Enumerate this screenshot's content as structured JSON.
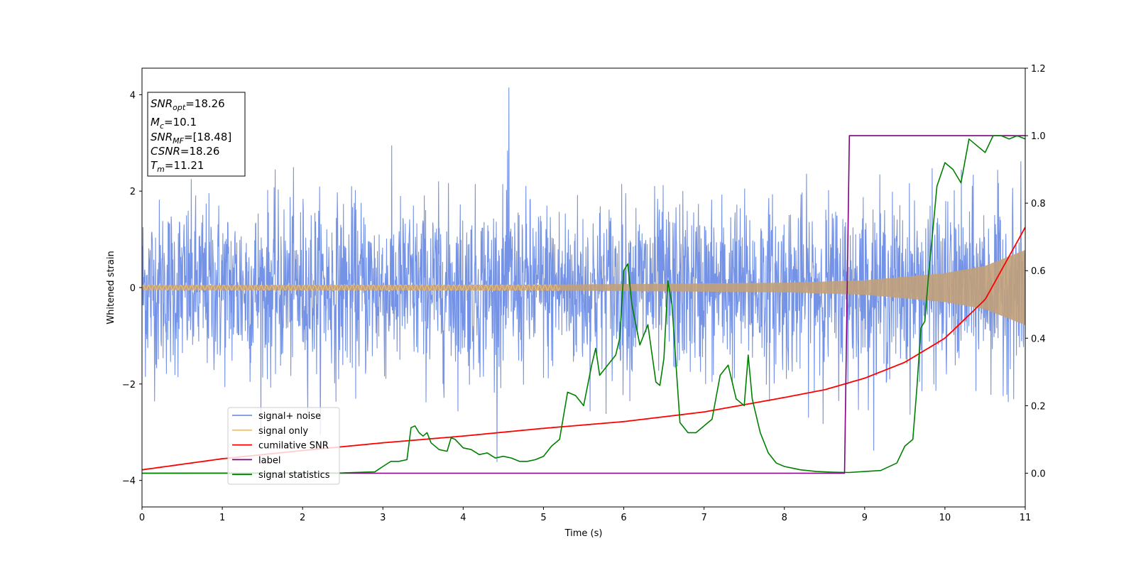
{
  "chart_data": {
    "type": "line",
    "xlabel": "Time (s)",
    "ylabel": "Whitened strain",
    "xlim": [
      0,
      11
    ],
    "ylim": [
      -4.55,
      4.55
    ],
    "y2lim": [
      -0.1,
      1.2
    ],
    "xticks": [
      0,
      1,
      2,
      3,
      4,
      5,
      6,
      7,
      8,
      9,
      10,
      11
    ],
    "yticks": [
      -4,
      -2,
      0,
      2,
      4
    ],
    "y2ticks": [
      "0.0",
      "0.2",
      "0.4",
      "0.6",
      "0.8",
      "1.0",
      "1.2"
    ],
    "grid": false,
    "legend_position": "lower-left",
    "annotation_box": {
      "snr_opt": {
        "label": "SNR",
        "sub": "opt",
        "value": "=18.26"
      },
      "mc": {
        "label": "M",
        "sub": "c",
        "value": "=10.1"
      },
      "snr_mf": {
        "label": "SNR",
        "sub": "MF",
        "value": "=[18.48]"
      },
      "csnr": {
        "label": "CSNR",
        "sub": "",
        "value": "=18.26"
      },
      "tm": {
        "label": "T",
        "sub": "m",
        "value": "=11.21"
      }
    },
    "series": [
      {
        "name": "signal+ noise",
        "color": "#7593e6",
        "axis": "left",
        "noise_sigma": 0.9,
        "peak": 4.15
      },
      {
        "name": "signal only",
        "color": "#f5c06a",
        "fill_color": "#c2a17a",
        "axis": "left",
        "envelope": [
          [
            0,
            0.05
          ],
          [
            5,
            0.06
          ],
          [
            8,
            0.1
          ],
          [
            9,
            0.15
          ],
          [
            10,
            0.3
          ],
          [
            10.5,
            0.45
          ],
          [
            11,
            0.78
          ]
        ]
      },
      {
        "name": "cumilative SNR",
        "color": "#ff0000",
        "axis": "left",
        "x": [
          0,
          1,
          2,
          3,
          4,
          5,
          6,
          7,
          8,
          8.5,
          9,
          9.5,
          10,
          10.5,
          11
        ],
        "y": [
          -3.78,
          -3.55,
          -3.38,
          -3.22,
          -3.08,
          -2.92,
          -2.78,
          -2.58,
          -2.28,
          -2.12,
          -1.88,
          -1.55,
          -1.05,
          -0.25,
          1.25
        ]
      },
      {
        "name": "label",
        "color": "#800080",
        "axis": "right",
        "x": [
          0,
          8.75,
          8.81,
          11
        ],
        "y": [
          0,
          0,
          1,
          1
        ]
      },
      {
        "name": "signal statistics",
        "color": "#008000",
        "axis": "right",
        "x": [
          0,
          2.5,
          2.9,
          3.0,
          3.1,
          3.2,
          3.3,
          3.35,
          3.4,
          3.45,
          3.5,
          3.55,
          3.6,
          3.7,
          3.8,
          3.85,
          3.9,
          4.0,
          4.1,
          4.2,
          4.3,
          4.4,
          4.5,
          4.6,
          4.7,
          4.8,
          4.9,
          5.0,
          5.1,
          5.2,
          5.3,
          5.4,
          5.5,
          5.6,
          5.65,
          5.7,
          5.8,
          5.9,
          5.95,
          6.0,
          6.05,
          6.1,
          6.2,
          6.3,
          6.4,
          6.45,
          6.5,
          6.55,
          6.6,
          6.7,
          6.8,
          6.9,
          7.0,
          7.1,
          7.2,
          7.3,
          7.4,
          7.5,
          7.55,
          7.6,
          7.7,
          7.8,
          7.9,
          8.0,
          8.1,
          8.2,
          8.4,
          8.6,
          8.8,
          9.0,
          9.2,
          9.4,
          9.5,
          9.6,
          9.65,
          9.7,
          9.75,
          9.8,
          9.85,
          9.9,
          10.0,
          10.1,
          10.2,
          10.3,
          10.4,
          10.5,
          10.6,
          10.7,
          10.8,
          10.9,
          11
        ],
        "y": [
          0,
          0.001,
          0.004,
          0.02,
          0.035,
          0.035,
          0.04,
          0.135,
          0.14,
          0.12,
          0.11,
          0.12,
          0.09,
          0.07,
          0.065,
          0.105,
          0.1,
          0.075,
          0.07,
          0.055,
          0.06,
          0.045,
          0.05,
          0.045,
          0.035,
          0.035,
          0.04,
          0.05,
          0.08,
          0.1,
          0.24,
          0.23,
          0.2,
          0.32,
          0.37,
          0.29,
          0.32,
          0.35,
          0.4,
          0.6,
          0.62,
          0.5,
          0.38,
          0.44,
          0.27,
          0.26,
          0.34,
          0.57,
          0.5,
          0.15,
          0.12,
          0.12,
          0.14,
          0.16,
          0.29,
          0.32,
          0.22,
          0.2,
          0.35,
          0.22,
          0.12,
          0.06,
          0.03,
          0.02,
          0.015,
          0.01,
          0.005,
          0.003,
          0.002,
          0.005,
          0.008,
          0.03,
          0.08,
          0.1,
          0.25,
          0.43,
          0.45,
          0.6,
          0.72,
          0.85,
          0.92,
          0.9,
          0.86,
          0.99,
          0.97,
          0.95,
          1.0,
          1.0,
          0.99,
          1.0,
          0.99
        ]
      }
    ]
  }
}
